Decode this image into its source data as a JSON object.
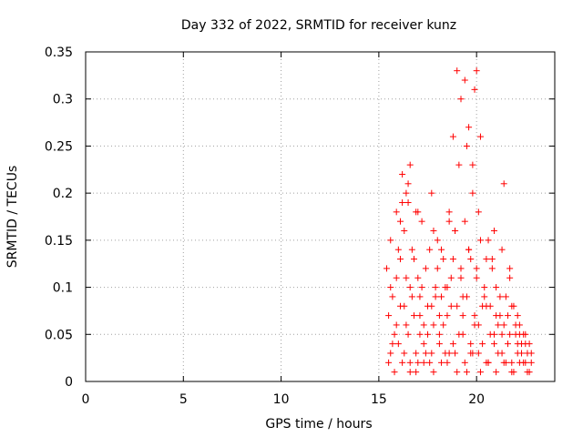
{
  "chart_data": {
    "type": "scatter",
    "title": "Day 332 of 2022, SRMTID for receiver kunz",
    "xlabel": "GPS time / hours",
    "ylabel": "SRMTID / TECUs",
    "xlim": [
      0,
      24
    ],
    "ylim": [
      0,
      0.35
    ],
    "x_ticks": [
      "0",
      "5",
      "10",
      "15",
      "20"
    ],
    "y_ticks": [
      "0",
      "0.05",
      "0.1",
      "0.15",
      "0.2",
      "0.25",
      "0.3",
      "0.35"
    ],
    "grid": true,
    "marker": "+",
    "color": "#ff0000",
    "series": [
      {
        "x": [
          15.4,
          15.5,
          15.6,
          15.6,
          15.7,
          15.8,
          15.9,
          15.9,
          16.0,
          16.1,
          16.2,
          16.3,
          16.3,
          16.4,
          16.5,
          16.6,
          16.6,
          16.7,
          16.8,
          16.9,
          17.0,
          17.1,
          17.1,
          17.2,
          17.3,
          17.4,
          17.5,
          17.6,
          17.7,
          17.8,
          17.9,
          18.0,
          18.1,
          18.2,
          18.3,
          18.4,
          18.5,
          18.6,
          18.7,
          18.8,
          18.9,
          19.0,
          19.1,
          19.2,
          19.3,
          19.4,
          19.5,
          19.6,
          19.7,
          19.8,
          19.9,
          20.0,
          20.1,
          20.2,
          20.3,
          20.4,
          20.5,
          20.6,
          20.7,
          20.8,
          20.9,
          21.0,
          21.1,
          21.2,
          21.3,
          21.4,
          21.5,
          21.6,
          21.7,
          21.8,
          21.9,
          22.0,
          22.1,
          22.2,
          22.3,
          22.4,
          22.5,
          22.6,
          22.7,
          22.8,
          15.5,
          15.7,
          15.9,
          16.1,
          16.3,
          16.5,
          16.7,
          16.9,
          17.1,
          17.3,
          17.5,
          17.7,
          17.9,
          18.1,
          18.3,
          18.5,
          18.7,
          18.9,
          19.1,
          19.3,
          19.5,
          19.7,
          19.9,
          20.1,
          20.3,
          20.5,
          20.7,
          20.9,
          21.1,
          21.3,
          21.5,
          21.7,
          21.9,
          22.1,
          22.3,
          22.5,
          22.7,
          15.6,
          16.0,
          16.4,
          16.8,
          17.2,
          17.6,
          18.0,
          18.4,
          18.8,
          19.2,
          19.6,
          20.0,
          20.4,
          20.8,
          21.2,
          21.6,
          22.0,
          22.4,
          22.8,
          15.8,
          16.2,
          16.6,
          17.0,
          17.4,
          17.8,
          18.2,
          18.6,
          19.0,
          19.4,
          19.8,
          20.2,
          20.6,
          21.0,
          21.4,
          21.8,
          22.2,
          22.6,
          16.1,
          16.5,
          16.9,
          17.3,
          17.7,
          18.1,
          18.5,
          18.9,
          19.3,
          19.7,
          20.1,
          20.5,
          20.9,
          21.3,
          21.7,
          22.1,
          22.5,
          16.2,
          16.4,
          16.6,
          17.0,
          17.8,
          18.2,
          18.6,
          18.8,
          19.0,
          19.2,
          19.4,
          19.5,
          19.6,
          19.8,
          19.9,
          20.0,
          20.2,
          20.6,
          21.0,
          21.4,
          21.8,
          22.2
        ],
        "y": [
          0.12,
          0.07,
          0.03,
          0.15,
          0.09,
          0.05,
          0.18,
          0.11,
          0.04,
          0.13,
          0.22,
          0.08,
          0.16,
          0.06,
          0.19,
          0.1,
          0.02,
          0.14,
          0.07,
          0.03,
          0.11,
          0.05,
          0.09,
          0.17,
          0.04,
          0.12,
          0.08,
          0.02,
          0.2,
          0.06,
          0.1,
          0.15,
          0.05,
          0.09,
          0.13,
          0.03,
          0.07,
          0.18,
          0.11,
          0.04,
          0.16,
          0.08,
          0.23,
          0.12,
          0.05,
          0.17,
          0.09,
          0.14,
          0.03,
          0.2,
          0.07,
          0.11,
          0.06,
          0.15,
          0.04,
          0.09,
          0.13,
          0.02,
          0.08,
          0.12,
          0.05,
          0.1,
          0.03,
          0.07,
          0.14,
          0.06,
          0.09,
          0.04,
          0.11,
          0.02,
          0.08,
          0.05,
          0.03,
          0.06,
          0.04,
          0.02,
          0.05,
          0.03,
          0.04,
          0.02,
          0.02,
          0.04,
          0.06,
          0.08,
          0.03,
          0.05,
          0.09,
          0.01,
          0.07,
          0.02,
          0.05,
          0.03,
          0.09,
          0.04,
          0.06,
          0.02,
          0.08,
          0.03,
          0.05,
          0.07,
          0.01,
          0.04,
          0.06,
          0.03,
          0.08,
          0.02,
          0.05,
          0.04,
          0.06,
          0.03,
          0.02,
          0.05,
          0.01,
          0.04,
          0.03,
          0.02,
          0.01,
          0.1,
          0.14,
          0.11,
          0.13,
          0.1,
          0.14,
          0.12,
          0.1,
          0.13,
          0.11,
          0.14,
          0.12,
          0.1,
          0.13,
          0.09,
          0.07,
          0.06,
          0.05,
          0.03,
          0.01,
          0.02,
          0.01,
          0.02,
          0.03,
          0.01,
          0.02,
          0.03,
          0.01,
          0.02,
          0.03,
          0.01,
          0.02,
          0.01,
          0.02,
          0.01,
          0.02,
          0.01,
          0.17,
          0.21,
          0.18,
          0.06,
          0.08,
          0.07,
          0.1,
          0.16,
          0.09,
          0.13,
          0.18,
          0.08,
          0.16,
          0.05,
          0.12,
          0.07,
          0.04,
          0.19,
          0.2,
          0.23,
          0.18,
          0.16,
          0.14,
          0.17,
          0.26,
          0.33,
          0.3,
          0.32,
          0.25,
          0.27,
          0.23,
          0.31,
          0.33,
          0.26,
          0.15,
          0.07,
          0.21,
          0.08,
          0.05
        ]
      }
    ]
  }
}
